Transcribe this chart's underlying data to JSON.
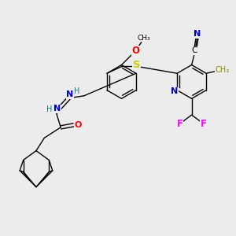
{
  "background_color": "#ececec",
  "figure_size": [
    3.0,
    3.0
  ],
  "dpi": 100,
  "xlim": [
    0,
    10
  ],
  "ylim": [
    0,
    10
  ],
  "lw": 1.0,
  "colors": {
    "bond": "#000000",
    "N": "#0000cc",
    "O": "#ff0000",
    "S": "#cccc00",
    "F": "#ff00ff",
    "C": "#000000",
    "H_teal": "#008080"
  }
}
